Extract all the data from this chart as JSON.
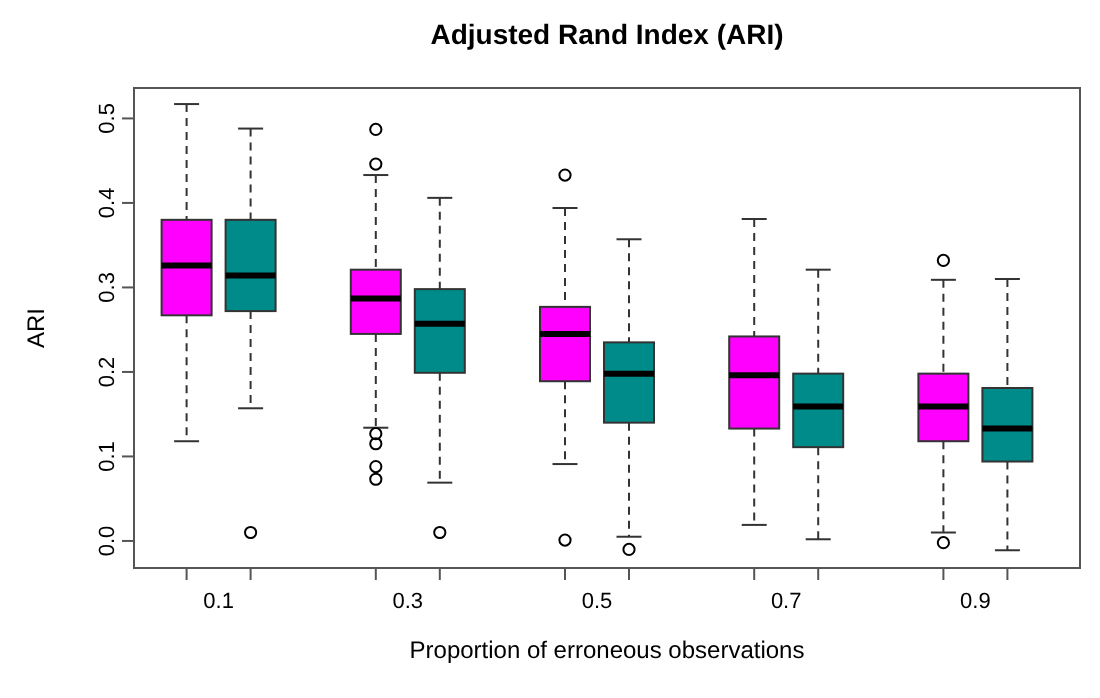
{
  "chart_data": {
    "type": "box",
    "title": "Adjusted Rand Index (ARI)",
    "xlabel": "Proportion of erroneous observations",
    "ylabel": "ARI",
    "categories": [
      "0.1",
      "0.3",
      "0.5",
      "0.7",
      "0.9"
    ],
    "ylim": [
      -0.032,
      0.536
    ],
    "yticks": [
      {
        "value": 0,
        "label": "0.0"
      },
      0.1,
      0.2,
      0.3,
      0.4,
      0.5
    ],
    "grid": false,
    "series": [
      {
        "color": "#ff00ff",
        "boxes": [
          {
            "low": 0.118,
            "q1": 0.267,
            "median": 0.326,
            "q3": 0.38,
            "high": 0.517
          },
          {
            "low": 0.134,
            "q1": 0.245,
            "median": 0.287,
            "q3": 0.321,
            "high": 0.433,
            "outliers": [
              0.487,
              0.446,
              0.127,
              0.115,
              0.088,
              0.073
            ]
          },
          {
            "low": 0.091,
            "q1": 0.189,
            "median": 0.245,
            "q3": 0.277,
            "high": 0.394,
            "outliers": [
              0.433,
              0.001
            ]
          },
          {
            "low": 0.019,
            "q1": 0.133,
            "median": 0.196,
            "q3": 0.242,
            "high": 0.381
          },
          {
            "low": 0.01,
            "q1": 0.118,
            "median": 0.159,
            "q3": 0.198,
            "high": 0.309,
            "outliers": [
              0.332,
              -0.002
            ]
          }
        ]
      },
      {
        "color": "#008b8b",
        "boxes": [
          {
            "low": 0.157,
            "q1": 0.272,
            "median": 0.314,
            "q3": 0.38,
            "high": 0.488,
            "outliers": [
              0.01
            ]
          },
          {
            "low": 0.069,
            "q1": 0.199,
            "median": 0.257,
            "q3": 0.298,
            "high": 0.406,
            "outliers": [
              0.01
            ]
          },
          {
            "low": 0.005,
            "q1": 0.14,
            "median": 0.198,
            "q3": 0.235,
            "high": 0.357,
            "outliers": [
              -0.01
            ]
          },
          {
            "low": 0.002,
            "q1": 0.111,
            "median": 0.159,
            "q3": 0.198,
            "high": 0.321
          },
          {
            "low": -0.011,
            "q1": 0.094,
            "median": 0.133,
            "q3": 0.181,
            "high": 0.31
          }
        ]
      }
    ]
  }
}
